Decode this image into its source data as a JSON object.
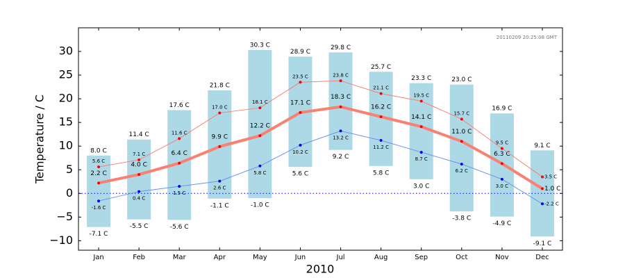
{
  "chart_data": {
    "type": "range-bar-line",
    "stamp": "20110209 20:25:08 GMT",
    "xlabel": "2010",
    "ylabel": "Temperature / C",
    "categories": [
      "Jan",
      "Feb",
      "Mar",
      "Apr",
      "May",
      "Jun",
      "Jul",
      "Aug",
      "Sep",
      "Oct",
      "Nov",
      "Dec"
    ],
    "ylim": [
      -12,
      35
    ],
    "yticks": [
      {
        "value": -10,
        "label": "−10"
      },
      {
        "value": -5,
        "label": "−5"
      },
      0,
      5,
      10,
      15,
      20,
      25,
      30
    ],
    "bars": {
      "color": "#add8e6",
      "low": [
        -7.1,
        -5.5,
        -5.6,
        -1.1,
        -1.0,
        5.6,
        9.2,
        5.8,
        3.0,
        -3.8,
        -4.9,
        -9.1
      ],
      "low_labels": [
        "-7.1 C",
        "-5.5 C",
        "-5.6 C",
        "-1.1 C",
        "-1.0 C",
        "5.6 C",
        "9.2 C",
        "5.8 C",
        "3.0 C",
        "-3.8 C",
        "-4.9 C",
        "-9.1 C"
      ],
      "high": [
        8.0,
        11.4,
        17.6,
        21.8,
        30.3,
        28.9,
        29.8,
        25.7,
        23.3,
        23.0,
        16.9,
        9.1
      ],
      "high_labels": [
        "8.0 C",
        "11.4 C",
        "17.6 C",
        "21.8 C",
        "30.3 C",
        "28.9 C",
        "29.8 C",
        "25.7 C",
        "23.3 C",
        "23.0 C",
        "16.9 C",
        "9.1 C"
      ]
    },
    "series": [
      {
        "color": "#fa8072",
        "width": 4,
        "values": [
          2.2,
          4.0,
          6.4,
          9.9,
          12.2,
          17.1,
          18.3,
          16.2,
          14.1,
          11.0,
          6.3,
          1.0
        ],
        "value_labels": [
          "2.2 C",
          "4.0 C",
          "6.4 C",
          "9.9 C",
          "12.2 C",
          "17.1 C",
          "18.3 C",
          "16.2 C",
          "14.1 C",
          "11.0 C",
          "6.3 C",
          "1.0 C"
        ]
      },
      {
        "color": "#fa8072",
        "width": 1,
        "values": [
          5.6,
          7.1,
          11.6,
          17.0,
          18.1,
          23.5,
          23.8,
          21.1,
          19.5,
          15.7,
          9.5,
          3.5
        ],
        "value_labels": [
          "5.6 C",
          "7.1 C",
          "11.6 C",
          "17.0 C",
          "18.1 C",
          "23.5 C",
          "23.8 C",
          "21.1 C",
          "19.5 C",
          "15.7 C",
          "9.5 C",
          "3.5 C"
        ]
      },
      {
        "color": "#6495ed",
        "width": 1,
        "values": [
          -1.6,
          0.4,
          1.5,
          2.6,
          5.8,
          10.2,
          13.2,
          11.2,
          8.7,
          6.2,
          3.0,
          -2.2
        ],
        "value_labels": [
          "-1.6 C",
          "0.4 C",
          "1.5 C",
          "2.6 C",
          "5.8 C",
          "10.2 C",
          "13.2 C",
          "11.2 C",
          "8.7 C",
          "6.2 C",
          "3.0 C",
          "-2.2 C"
        ]
      }
    ]
  }
}
